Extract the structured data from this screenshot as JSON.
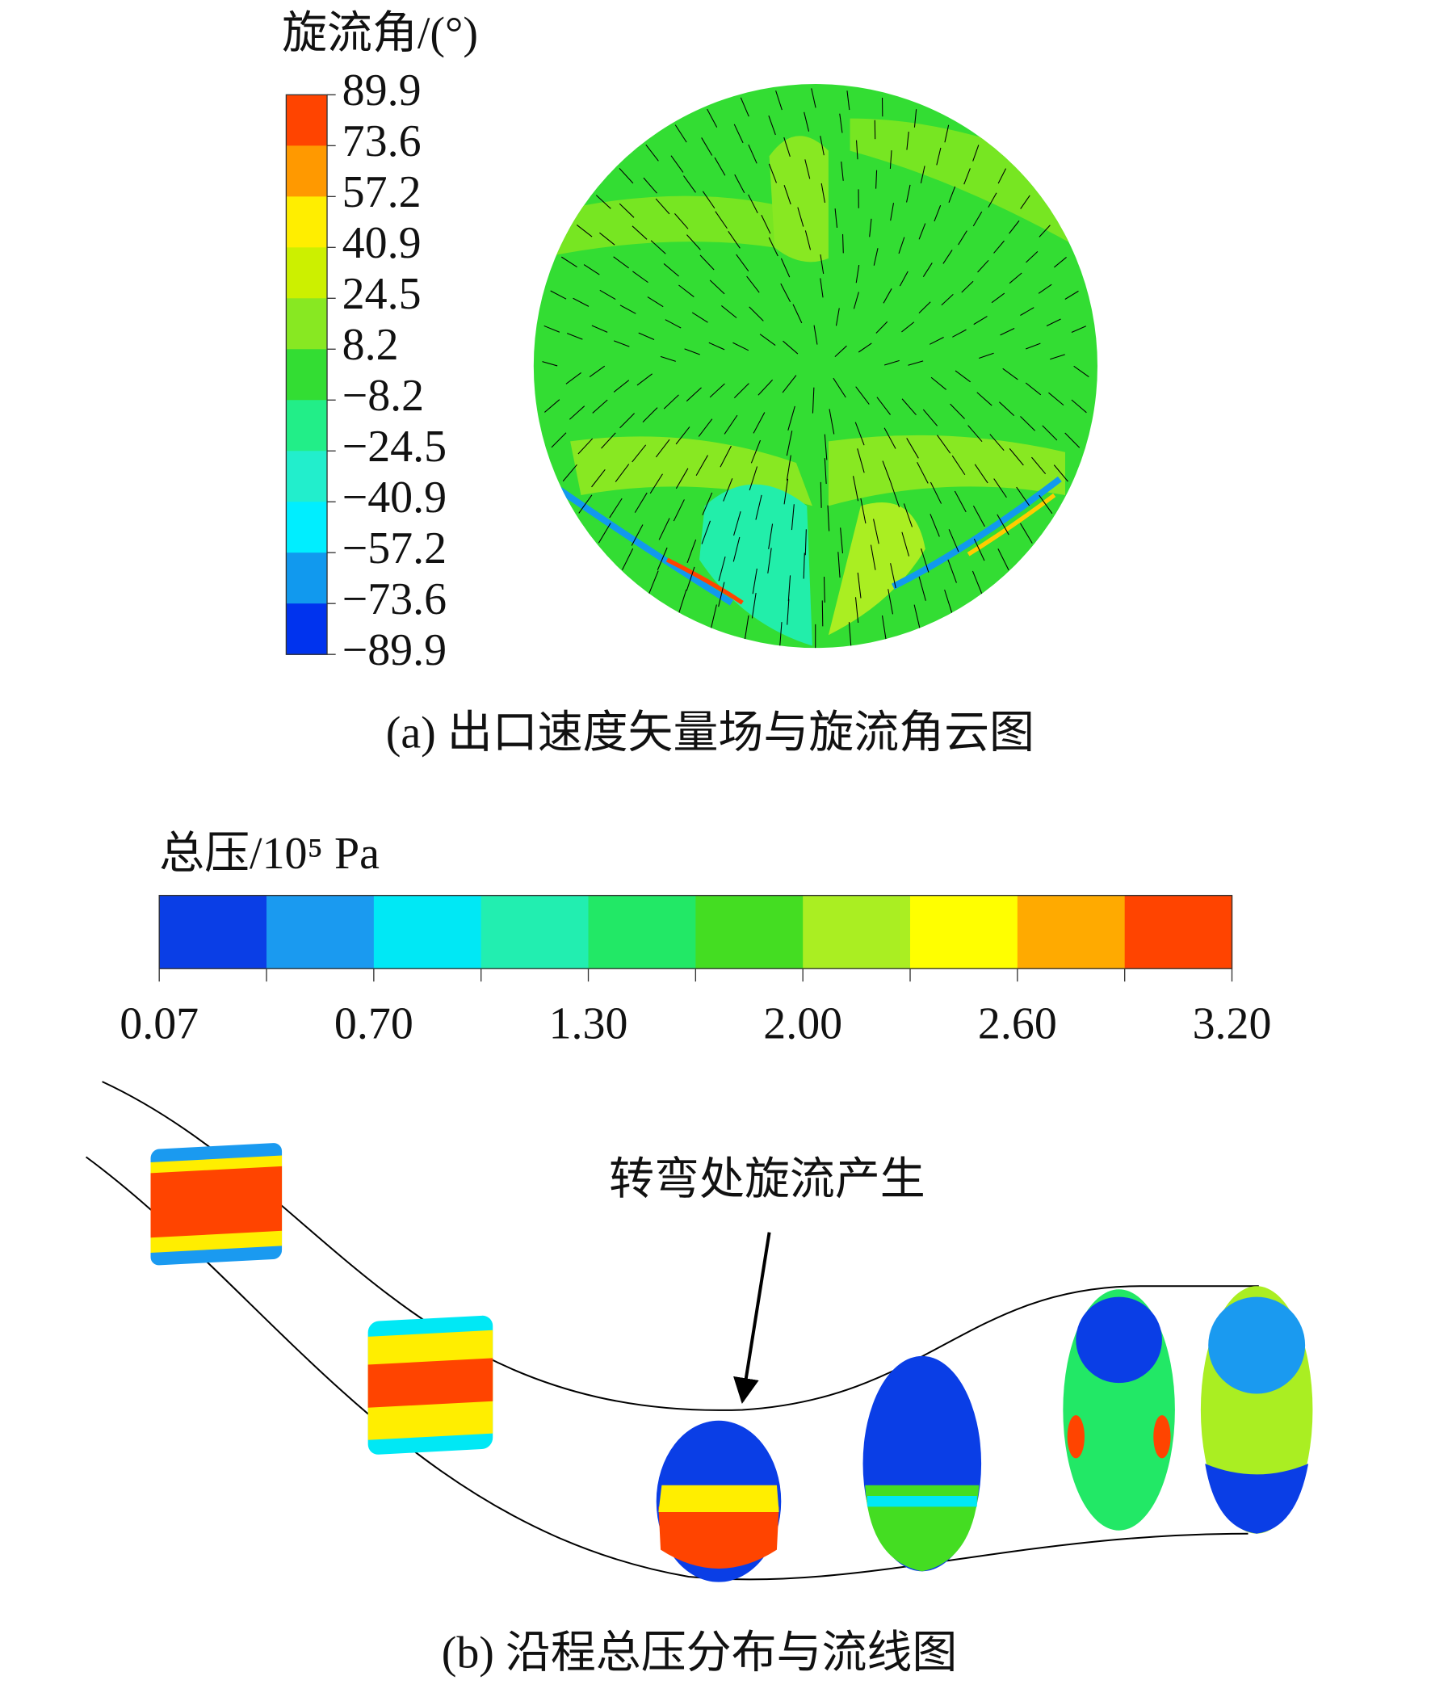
{
  "figure_a": {
    "legend_title": "旋流角/(°)",
    "legend_labels": [
      "89.9",
      "73.6",
      "57.2",
      "40.9",
      "24.5",
      "8.2",
      "−8.2",
      "−24.5",
      "−40.9",
      "−57.2",
      "−73.6",
      "−89.9"
    ],
    "legend_colors": [
      "#ff4400",
      "#ff9900",
      "#ffee00",
      "#ccf000",
      "#88e822",
      "#33dd33",
      "#22ee88",
      "#22eecc",
      "#00eeff",
      "#1199ee",
      "#0033ee"
    ],
    "caption": "(a) 出口速度矢量场与旋流角云图"
  },
  "figure_b": {
    "legend_title": "总压/10⁵ Pa",
    "legend_labels": [
      "0.07",
      "0.70",
      "1.30",
      "2.00",
      "2.60",
      "3.20"
    ],
    "legend_colors": [
      "#0a3ee6",
      "#1a9af0",
      "#00e8f5",
      "#22eeb0",
      "#22e866",
      "#44dd22",
      "#aaee22",
      "#ffff00",
      "#ffaa00",
      "#ff4400"
    ],
    "annotation": "转弯处旋流产生",
    "caption": "(b) 沿程总压分布与流线图"
  }
}
